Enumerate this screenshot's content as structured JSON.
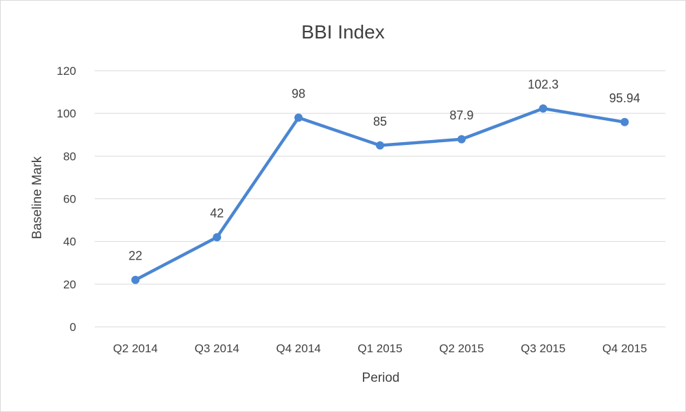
{
  "chart_data": {
    "type": "line",
    "title": "BBI Index",
    "xlabel": "Period",
    "ylabel": "Baseline Mark",
    "categories": [
      "Q2 2014",
      "Q3 2014",
      "Q4 2014",
      "Q1 2015",
      "Q2 2015",
      "Q3 2015",
      "Q4 2015"
    ],
    "series": [
      {
        "values": [
          22,
          42,
          98,
          85,
          87.9,
          102.3,
          95.94
        ],
        "color": "#4a86d2",
        "data_labels": [
          "22",
          "42",
          "98",
          "85",
          "87.9",
          "102.3",
          "95.94"
        ]
      }
    ],
    "ylim": [
      0,
      120
    ],
    "yticks": [
      0,
      20,
      40,
      60,
      80,
      100,
      120
    ],
    "grid": true,
    "legend": "none"
  }
}
